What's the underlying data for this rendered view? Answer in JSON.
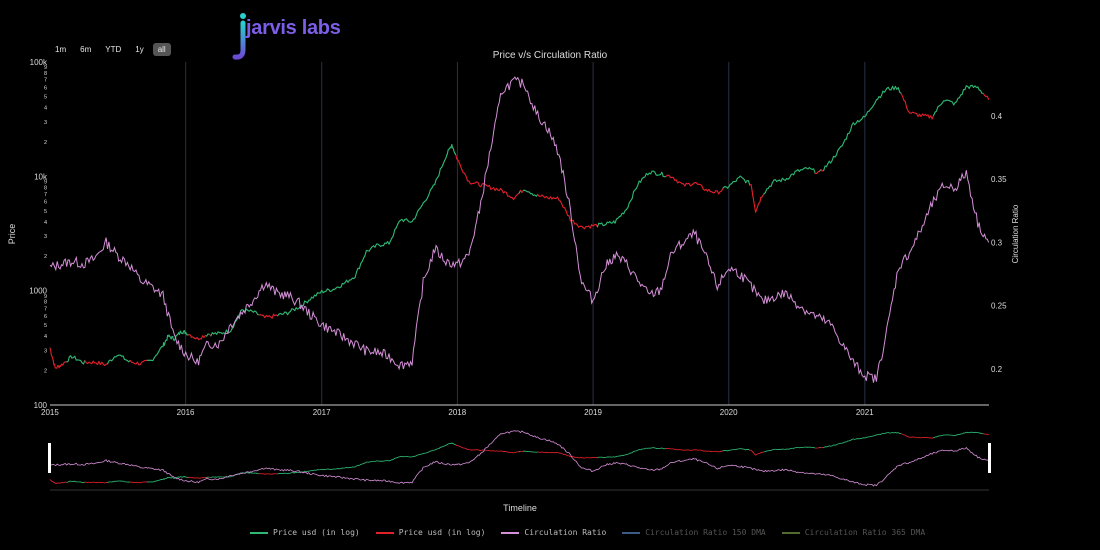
{
  "brand": {
    "logo_text": "jarvis labs"
  },
  "range_selector": {
    "buttons": [
      "1m",
      "6m",
      "YTD",
      "1y",
      "all"
    ],
    "active": "all"
  },
  "colors": {
    "price_up": "#2eb872",
    "price_down": "#e0202a",
    "ratio": "#d58fd8",
    "dma150": "#3b5b86",
    "dma365": "#4f6b2f",
    "grid": "#2b2f45"
  },
  "chart_data": {
    "type": "line",
    "title": "Price v/s Circulation Ratio",
    "xlabel": "Timeline",
    "y_left_label": "Price",
    "y_right_label": "Circulation Ratio",
    "x_range": [
      "2015-01-01",
      "2021-12-01"
    ],
    "y_left_scale": "log",
    "y_left_range": [
      100,
      100000
    ],
    "y_left_ticks": [
      {
        "v": 100,
        "l": "100"
      },
      {
        "v": 200,
        "l": "2"
      },
      {
        "v": 300,
        "l": "3"
      },
      {
        "v": 400,
        "l": "4"
      },
      {
        "v": 500,
        "l": "5"
      },
      {
        "v": 600,
        "l": "6"
      },
      {
        "v": 700,
        "l": "7"
      },
      {
        "v": 800,
        "l": "8"
      },
      {
        "v": 900,
        "l": "9"
      },
      {
        "v": 1000,
        "l": "1000"
      },
      {
        "v": 2000,
        "l": "2"
      },
      {
        "v": 3000,
        "l": "3"
      },
      {
        "v": 4000,
        "l": "4"
      },
      {
        "v": 5000,
        "l": "5"
      },
      {
        "v": 6000,
        "l": "6"
      },
      {
        "v": 7000,
        "l": "7"
      },
      {
        "v": 8000,
        "l": "8"
      },
      {
        "v": 9000,
        "l": "9"
      },
      {
        "v": 10000,
        "l": "10k"
      },
      {
        "v": 20000,
        "l": "2"
      },
      {
        "v": 30000,
        "l": "3"
      },
      {
        "v": 40000,
        "l": "4"
      },
      {
        "v": 50000,
        "l": "5"
      },
      {
        "v": 60000,
        "l": "6"
      },
      {
        "v": 70000,
        "l": "7"
      },
      {
        "v": 80000,
        "l": "8"
      },
      {
        "v": 90000,
        "l": "9"
      },
      {
        "v": 100000,
        "l": "100k"
      }
    ],
    "y_right_range": [
      0.1715,
      0.4425
    ],
    "y_right_ticks": [
      "0.2",
      "0.25",
      "0.3",
      "0.35",
      "0.4"
    ],
    "x_ticks": [
      "2015",
      "2016",
      "2017",
      "2018",
      "2019",
      "2020",
      "2021"
    ],
    "series": [
      {
        "name": "Price usd (in log)",
        "axis": "left",
        "colored_by_trend": true,
        "points": [
          [
            "2015-01-01",
            315
          ],
          [
            "2015-01-15",
            210
          ],
          [
            "2015-02-01",
            225
          ],
          [
            "2015-03-01",
            265
          ],
          [
            "2015-04-01",
            235
          ],
          [
            "2015-05-01",
            237
          ],
          [
            "2015-06-01",
            225
          ],
          [
            "2015-07-01",
            280
          ],
          [
            "2015-08-01",
            240
          ],
          [
            "2015-09-01",
            230
          ],
          [
            "2015-10-01",
            245
          ],
          [
            "2015-11-01",
            330
          ],
          [
            "2015-11-15",
            400
          ],
          [
            "2015-12-01",
            380
          ],
          [
            "2015-12-20",
            440
          ],
          [
            "2016-01-01",
            432
          ],
          [
            "2016-02-01",
            380
          ],
          [
            "2016-03-01",
            418
          ],
          [
            "2016-04-01",
            422
          ],
          [
            "2016-05-01",
            450
          ],
          [
            "2016-06-01",
            680
          ],
          [
            "2016-07-01",
            650
          ],
          [
            "2016-08-01",
            580
          ],
          [
            "2016-09-01",
            605
          ],
          [
            "2016-10-01",
            640
          ],
          [
            "2016-11-01",
            720
          ],
          [
            "2016-12-01",
            850
          ],
          [
            "2017-01-01",
            980
          ],
          [
            "2017-02-01",
            1030
          ],
          [
            "2017-03-01",
            1150
          ],
          [
            "2017-04-01",
            1350
          ],
          [
            "2017-05-01",
            2200
          ],
          [
            "2017-06-01",
            2500
          ],
          [
            "2017-07-01",
            2600
          ],
          [
            "2017-08-01",
            4200
          ],
          [
            "2017-09-01",
            4000
          ],
          [
            "2017-10-01",
            5800
          ],
          [
            "2017-11-01",
            8500
          ],
          [
            "2017-12-01",
            15000
          ],
          [
            "2017-12-17",
            19000
          ],
          [
            "2018-01-01",
            14000
          ],
          [
            "2018-02-01",
            9000
          ],
          [
            "2018-03-01",
            8500
          ],
          [
            "2018-04-01",
            8000
          ],
          [
            "2018-05-01",
            7500
          ],
          [
            "2018-06-01",
            6500
          ],
          [
            "2018-07-01",
            7800
          ],
          [
            "2018-08-01",
            6800
          ],
          [
            "2018-09-01",
            6500
          ],
          [
            "2018-10-01",
            6400
          ],
          [
            "2018-11-01",
            4200
          ],
          [
            "2018-12-01",
            3600
          ],
          [
            "2019-01-01",
            3700
          ],
          [
            "2019-02-01",
            3800
          ],
          [
            "2019-03-01",
            4000
          ],
          [
            "2019-04-01",
            5200
          ],
          [
            "2019-05-01",
            8500
          ],
          [
            "2019-06-01",
            11000
          ],
          [
            "2019-07-01",
            10500
          ],
          [
            "2019-08-01",
            10000
          ],
          [
            "2019-09-01",
            8300
          ],
          [
            "2019-10-01",
            8800
          ],
          [
            "2019-11-01",
            7600
          ],
          [
            "2019-12-01",
            7200
          ],
          [
            "2020-01-01",
            8200
          ],
          [
            "2020-02-01",
            9800
          ],
          [
            "2020-03-01",
            8500
          ],
          [
            "2020-03-13",
            5000
          ],
          [
            "2020-04-01",
            7000
          ],
          [
            "2020-05-01",
            9000
          ],
          [
            "2020-06-01",
            9400
          ],
          [
            "2020-07-01",
            11000
          ],
          [
            "2020-08-01",
            11700
          ],
          [
            "2020-09-01",
            10700
          ],
          [
            "2020-10-01",
            13500
          ],
          [
            "2020-11-01",
            18500
          ],
          [
            "2020-12-01",
            29000
          ],
          [
            "2021-01-01",
            33000
          ],
          [
            "2021-02-01",
            47000
          ],
          [
            "2021-03-01",
            58000
          ],
          [
            "2021-04-01",
            60000
          ],
          [
            "2021-05-01",
            36000
          ],
          [
            "2021-06-01",
            34000
          ],
          [
            "2021-07-01",
            33000
          ],
          [
            "2021-08-01",
            47000
          ],
          [
            "2021-09-01",
            43000
          ],
          [
            "2021-10-01",
            61000
          ],
          [
            "2021-11-01",
            60000
          ],
          [
            "2021-11-30",
            47000
          ]
        ]
      },
      {
        "name": "Price usd (in log)",
        "axis": "left",
        "legend_only": true
      },
      {
        "name": "Circulation Ratio",
        "axis": "right",
        "points": [
          [
            "2015-01-01",
            0.28
          ],
          [
            "2015-02-01",
            0.283
          ],
          [
            "2015-03-01",
            0.285
          ],
          [
            "2015-04-01",
            0.283
          ],
          [
            "2015-05-01",
            0.287
          ],
          [
            "2015-06-01",
            0.3
          ],
          [
            "2015-07-01",
            0.29
          ],
          [
            "2015-08-01",
            0.283
          ],
          [
            "2015-09-01",
            0.27
          ],
          [
            "2015-10-01",
            0.265
          ],
          [
            "2015-11-01",
            0.258
          ],
          [
            "2015-12-01",
            0.225
          ],
          [
            "2016-01-01",
            0.212
          ],
          [
            "2016-02-01",
            0.205
          ],
          [
            "2016-03-01",
            0.22
          ],
          [
            "2016-04-01",
            0.22
          ],
          [
            "2016-05-01",
            0.235
          ],
          [
            "2016-06-01",
            0.245
          ],
          [
            "2016-07-01",
            0.255
          ],
          [
            "2016-08-01",
            0.268
          ],
          [
            "2016-09-01",
            0.26
          ],
          [
            "2016-10-01",
            0.258
          ],
          [
            "2016-11-01",
            0.252
          ],
          [
            "2016-12-01",
            0.243
          ],
          [
            "2017-01-01",
            0.235
          ],
          [
            "2017-02-01",
            0.23
          ],
          [
            "2017-03-01",
            0.225
          ],
          [
            "2017-04-01",
            0.22
          ],
          [
            "2017-05-01",
            0.214
          ],
          [
            "2017-06-01",
            0.213
          ],
          [
            "2017-07-01",
            0.21
          ],
          [
            "2017-08-01",
            0.203
          ],
          [
            "2017-09-01",
            0.206
          ],
          [
            "2017-10-01",
            0.268
          ],
          [
            "2017-11-01",
            0.295
          ],
          [
            "2017-12-01",
            0.285
          ],
          [
            "2018-01-01",
            0.282
          ],
          [
            "2018-02-01",
            0.29
          ],
          [
            "2018-03-01",
            0.325
          ],
          [
            "2018-04-01",
            0.375
          ],
          [
            "2018-05-01",
            0.42
          ],
          [
            "2018-06-01",
            0.427
          ],
          [
            "2018-07-01",
            0.425
          ],
          [
            "2018-08-01",
            0.402
          ],
          [
            "2018-09-01",
            0.39
          ],
          [
            "2018-10-01",
            0.37
          ],
          [
            "2018-11-01",
            0.325
          ],
          [
            "2018-12-01",
            0.268
          ],
          [
            "2019-01-01",
            0.254
          ],
          [
            "2019-02-01",
            0.28
          ],
          [
            "2019-03-01",
            0.29
          ],
          [
            "2019-04-01",
            0.283
          ],
          [
            "2019-05-01",
            0.27
          ],
          [
            "2019-06-01",
            0.258
          ],
          [
            "2019-07-01",
            0.262
          ],
          [
            "2019-08-01",
            0.292
          ],
          [
            "2019-09-01",
            0.3
          ],
          [
            "2019-10-01",
            0.307
          ],
          [
            "2019-11-01",
            0.288
          ],
          [
            "2019-12-01",
            0.265
          ],
          [
            "2020-01-01",
            0.28
          ],
          [
            "2020-02-01",
            0.275
          ],
          [
            "2020-03-01",
            0.265
          ],
          [
            "2020-04-01",
            0.253
          ],
          [
            "2020-05-01",
            0.257
          ],
          [
            "2020-06-01",
            0.26
          ],
          [
            "2020-07-01",
            0.252
          ],
          [
            "2020-08-01",
            0.245
          ],
          [
            "2020-09-01",
            0.24
          ],
          [
            "2020-10-01",
            0.235
          ],
          [
            "2020-11-01",
            0.22
          ],
          [
            "2020-12-01",
            0.205
          ],
          [
            "2021-01-01",
            0.195
          ],
          [
            "2021-02-01",
            0.192
          ],
          [
            "2021-03-01",
            0.23
          ],
          [
            "2021-04-01",
            0.28
          ],
          [
            "2021-05-01",
            0.292
          ],
          [
            "2021-06-01",
            0.31
          ],
          [
            "2021-07-01",
            0.33
          ],
          [
            "2021-08-01",
            0.345
          ],
          [
            "2021-09-01",
            0.343
          ],
          [
            "2021-10-01",
            0.355
          ],
          [
            "2021-11-01",
            0.315
          ],
          [
            "2021-11-30",
            0.3
          ]
        ]
      },
      {
        "name": "Circulation Ratio 150 DMA",
        "axis": "right",
        "legend_only": true,
        "hidden": true
      },
      {
        "name": "Circulation Ratio 365 DMA",
        "axis": "right",
        "legend_only": true,
        "hidden": true
      }
    ]
  }
}
